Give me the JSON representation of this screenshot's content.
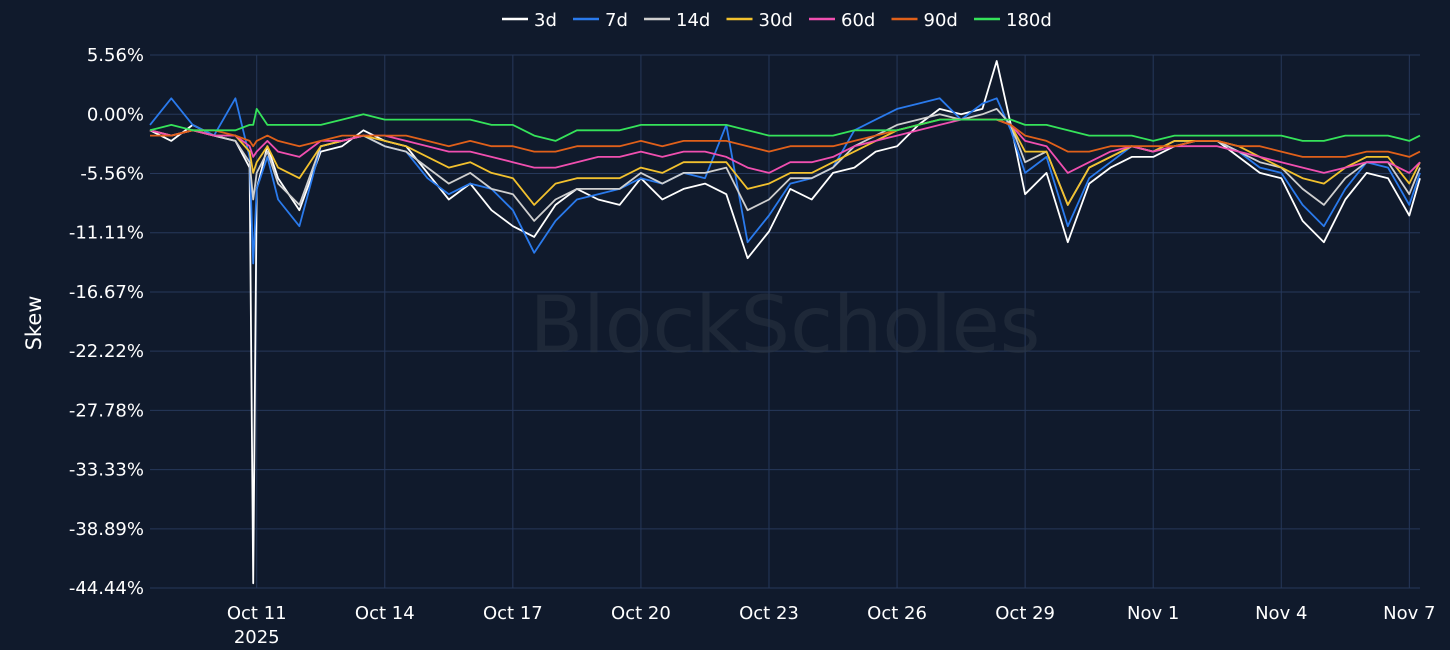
{
  "watermark": "BlockScholes",
  "chart_data": {
    "type": "line",
    "xlabel": "",
    "ylabel": "Skew",
    "legend_position": "top-center",
    "grid": true,
    "x_start": "2025-10-08T12:00",
    "x_end": "2025-11-07T06:00",
    "x_ticks": [
      {
        "date": "2025-10-11",
        "label": "Oct 11",
        "sublabel": "2025"
      },
      {
        "date": "2025-10-14",
        "label": "Oct 14"
      },
      {
        "date": "2025-10-17",
        "label": "Oct 17"
      },
      {
        "date": "2025-10-20",
        "label": "Oct 20"
      },
      {
        "date": "2025-10-23",
        "label": "Oct 23"
      },
      {
        "date": "2025-10-26",
        "label": "Oct 26"
      },
      {
        "date": "2025-10-29",
        "label": "Oct 29"
      },
      {
        "date": "2025-11-01",
        "label": "Nov 1"
      },
      {
        "date": "2025-11-04",
        "label": "Nov 4"
      },
      {
        "date": "2025-11-07",
        "label": "Nov 7"
      }
    ],
    "y_ticks": [
      "5.56%",
      "0.00%",
      "-5.56%",
      "-11.11%",
      "-16.67%",
      "-22.22%",
      "-27.78%",
      "-33.33%",
      "-38.89%",
      "-44.44%"
    ],
    "ylim": [
      -44.44,
      5.56
    ],
    "x": [
      "2025-10-08T12:00",
      "2025-10-09T00:00",
      "2025-10-09T12:00",
      "2025-10-10T00:00",
      "2025-10-10T12:00",
      "2025-10-10T20:00",
      "2025-10-10T22:00",
      "2025-10-11T00:00",
      "2025-10-11T06:00",
      "2025-10-11T12:00",
      "2025-10-12T00:00",
      "2025-10-12T12:00",
      "2025-10-13T00:00",
      "2025-10-13T12:00",
      "2025-10-14T00:00",
      "2025-10-14T12:00",
      "2025-10-15T00:00",
      "2025-10-15T12:00",
      "2025-10-16T00:00",
      "2025-10-16T12:00",
      "2025-10-17T00:00",
      "2025-10-17T12:00",
      "2025-10-18T00:00",
      "2025-10-18T12:00",
      "2025-10-19T00:00",
      "2025-10-19T12:00",
      "2025-10-20T00:00",
      "2025-10-20T12:00",
      "2025-10-21T00:00",
      "2025-10-21T12:00",
      "2025-10-22T00:00",
      "2025-10-22T12:00",
      "2025-10-23T00:00",
      "2025-10-23T12:00",
      "2025-10-24T00:00",
      "2025-10-24T12:00",
      "2025-10-25T00:00",
      "2025-10-25T12:00",
      "2025-10-26T00:00",
      "2025-10-26T12:00",
      "2025-10-27T00:00",
      "2025-10-27T12:00",
      "2025-10-28T00:00",
      "2025-10-28T08:00",
      "2025-10-28T16:00",
      "2025-10-29T00:00",
      "2025-10-29T12:00",
      "2025-10-30T00:00",
      "2025-10-30T12:00",
      "2025-10-31T00:00",
      "2025-10-31T12:00",
      "2025-11-01T00:00",
      "2025-11-01T12:00",
      "2025-11-02T00:00",
      "2025-11-02T12:00",
      "2025-11-03T00:00",
      "2025-11-03T12:00",
      "2025-11-04T00:00",
      "2025-11-04T12:00",
      "2025-11-05T00:00",
      "2025-11-05T12:00",
      "2025-11-06T00:00",
      "2025-11-06T12:00",
      "2025-11-07T00:00",
      "2025-11-07T06:00"
    ],
    "series": [
      {
        "name": "3d",
        "color": "#ffffff",
        "values": [
          -1.5,
          -2.5,
          -1.0,
          -2.0,
          -2.5,
          -5.0,
          -44.0,
          -7.0,
          -3.0,
          -6.0,
          -9.0,
          -3.5,
          -3.0,
          -1.5,
          -2.5,
          -3.0,
          -5.5,
          -8.0,
          -6.5,
          -9.0,
          -10.5,
          -11.5,
          -8.5,
          -7.0,
          -8.0,
          -8.5,
          -6.0,
          -8.0,
          -7.0,
          -6.5,
          -7.5,
          -13.5,
          -11.0,
          -7.0,
          -8.0,
          -5.5,
          -5.0,
          -3.5,
          -3.0,
          -1.0,
          0.5,
          0.0,
          0.5,
          5.0,
          -1.0,
          -7.5,
          -5.5,
          -12.0,
          -6.5,
          -5.0,
          -4.0,
          -4.0,
          -3.0,
          -2.5,
          -2.5,
          -4.0,
          -5.5,
          -6.0,
          -10.0,
          -12.0,
          -8.0,
          -5.5,
          -6.0,
          -9.5,
          -6.0
        ]
      },
      {
        "name": "7d",
        "color": "#2a7aec",
        "values": [
          -1.0,
          1.5,
          -1.0,
          -2.0,
          1.5,
          -4.0,
          -14.0,
          -7.0,
          -4.0,
          -8.0,
          -10.5,
          -3.0,
          -2.5,
          -2.0,
          -3.0,
          -3.5,
          -6.0,
          -7.5,
          -6.5,
          -7.0,
          -9.0,
          -13.0,
          -10.0,
          -8.0,
          -7.5,
          -7.0,
          -6.0,
          -6.5,
          -5.5,
          -6.0,
          -1.0,
          -12.0,
          -9.5,
          -6.5,
          -6.0,
          -5.0,
          -1.5,
          -0.5,
          0.5,
          1.0,
          1.5,
          -0.5,
          1.0,
          1.5,
          -1.5,
          -5.5,
          -4.0,
          -10.5,
          -6.0,
          -4.5,
          -3.0,
          -3.5,
          -2.5,
          -2.5,
          -2.5,
          -3.5,
          -5.0,
          -5.5,
          -8.5,
          -10.5,
          -7.0,
          -4.5,
          -5.0,
          -8.5,
          -5.5
        ]
      },
      {
        "name": "14d",
        "color": "#cfcfcf",
        "values": [
          -1.5,
          -2.0,
          -1.5,
          -2.0,
          -2.5,
          -4.5,
          -8.0,
          -5.5,
          -3.5,
          -6.5,
          -8.5,
          -3.0,
          -2.5,
          -2.0,
          -3.0,
          -3.5,
          -5.0,
          -6.5,
          -5.5,
          -7.0,
          -7.5,
          -10.0,
          -8.0,
          -7.0,
          -7.0,
          -7.0,
          -5.5,
          -6.5,
          -5.5,
          -5.5,
          -5.0,
          -9.0,
          -8.0,
          -6.0,
          -6.0,
          -5.0,
          -3.0,
          -2.0,
          -1.0,
          -0.5,
          0.0,
          -0.5,
          0.0,
          0.5,
          -1.0,
          -4.5,
          -3.5,
          -8.5,
          -5.0,
          -4.0,
          -3.0,
          -3.5,
          -2.5,
          -2.5,
          -2.5,
          -3.5,
          -4.5,
          -5.0,
          -7.0,
          -8.5,
          -6.0,
          -4.5,
          -4.5,
          -7.5,
          -5.0
        ]
      },
      {
        "name": "30d",
        "color": "#f2c12e",
        "values": [
          -1.5,
          -2.0,
          -1.5,
          -2.0,
          -2.0,
          -3.5,
          -5.5,
          -4.5,
          -3.0,
          -5.0,
          -6.0,
          -3.0,
          -2.5,
          -2.0,
          -2.5,
          -3.0,
          -4.0,
          -5.0,
          -4.5,
          -5.5,
          -6.0,
          -8.5,
          -6.5,
          -6.0,
          -6.0,
          -6.0,
          -5.0,
          -5.5,
          -4.5,
          -4.5,
          -4.5,
          -7.0,
          -6.5,
          -5.5,
          -5.5,
          -4.5,
          -3.5,
          -2.5,
          -1.5,
          -1.0,
          -0.5,
          -0.5,
          -0.5,
          -0.5,
          -1.0,
          -3.5,
          -3.5,
          -8.5,
          -5.0,
          -4.0,
          -3.0,
          -3.5,
          -2.5,
          -2.5,
          -2.5,
          -3.0,
          -4.0,
          -5.0,
          -6.0,
          -6.5,
          -5.0,
          -4.0,
          -4.0,
          -6.5,
          -4.5
        ]
      },
      {
        "name": "60d",
        "color": "#f04fb0",
        "values": [
          -1.5,
          -2.0,
          -1.5,
          -2.0,
          -2.0,
          -3.0,
          -4.0,
          -3.5,
          -2.5,
          -3.5,
          -4.0,
          -2.5,
          -2.5,
          -2.0,
          -2.0,
          -2.5,
          -3.0,
          -3.5,
          -3.5,
          -4.0,
          -4.5,
          -5.0,
          -5.0,
          -4.5,
          -4.0,
          -4.0,
          -3.5,
          -4.0,
          -3.5,
          -3.5,
          -4.0,
          -5.0,
          -5.5,
          -4.5,
          -4.5,
          -4.0,
          -3.0,
          -2.5,
          -2.0,
          -1.5,
          -1.0,
          -0.5,
          -0.5,
          -0.5,
          -1.0,
          -2.5,
          -3.0,
          -5.5,
          -4.5,
          -3.5,
          -3.0,
          -3.5,
          -3.0,
          -3.0,
          -3.0,
          -3.5,
          -4.0,
          -4.5,
          -5.0,
          -5.5,
          -5.0,
          -4.5,
          -4.5,
          -5.5,
          -4.5
        ]
      },
      {
        "name": "90d",
        "color": "#e0601a",
        "values": [
          -2.0,
          -2.0,
          -1.5,
          -1.5,
          -2.0,
          -2.5,
          -3.0,
          -2.5,
          -2.0,
          -2.5,
          -3.0,
          -2.5,
          -2.0,
          -2.0,
          -2.0,
          -2.0,
          -2.5,
          -3.0,
          -2.5,
          -3.0,
          -3.0,
          -3.5,
          -3.5,
          -3.0,
          -3.0,
          -3.0,
          -2.5,
          -3.0,
          -2.5,
          -2.5,
          -2.5,
          -3.0,
          -3.5,
          -3.0,
          -3.0,
          -3.0,
          -2.5,
          -2.0,
          -1.5,
          -1.0,
          -0.5,
          -0.5,
          -0.5,
          -0.5,
          -1.0,
          -2.0,
          -2.5,
          -3.5,
          -3.5,
          -3.0,
          -3.0,
          -3.0,
          -3.0,
          -2.5,
          -2.5,
          -3.0,
          -3.0,
          -3.5,
          -4.0,
          -4.0,
          -4.0,
          -3.5,
          -3.5,
          -4.0,
          -3.5
        ]
      },
      {
        "name": "180d",
        "color": "#35e35a",
        "values": [
          -1.5,
          -1.0,
          -1.5,
          -1.5,
          -1.5,
          -1.0,
          -1.0,
          0.5,
          -1.0,
          -1.0,
          -1.0,
          -1.0,
          -0.5,
          0.0,
          -0.5,
          -0.5,
          -0.5,
          -0.5,
          -0.5,
          -1.0,
          -1.0,
          -2.0,
          -2.5,
          -1.5,
          -1.5,
          -1.5,
          -1.0,
          -1.0,
          -1.0,
          -1.0,
          -1.0,
          -1.5,
          -2.0,
          -2.0,
          -2.0,
          -2.0,
          -1.5,
          -1.5,
          -1.5,
          -1.0,
          -0.5,
          -0.5,
          -0.5,
          -0.5,
          -0.5,
          -1.0,
          -1.0,
          -1.5,
          -2.0,
          -2.0,
          -2.0,
          -2.5,
          -2.0,
          -2.0,
          -2.0,
          -2.0,
          -2.0,
          -2.0,
          -2.5,
          -2.5,
          -2.0,
          -2.0,
          -2.0,
          -2.5,
          -2.0
        ]
      }
    ]
  }
}
